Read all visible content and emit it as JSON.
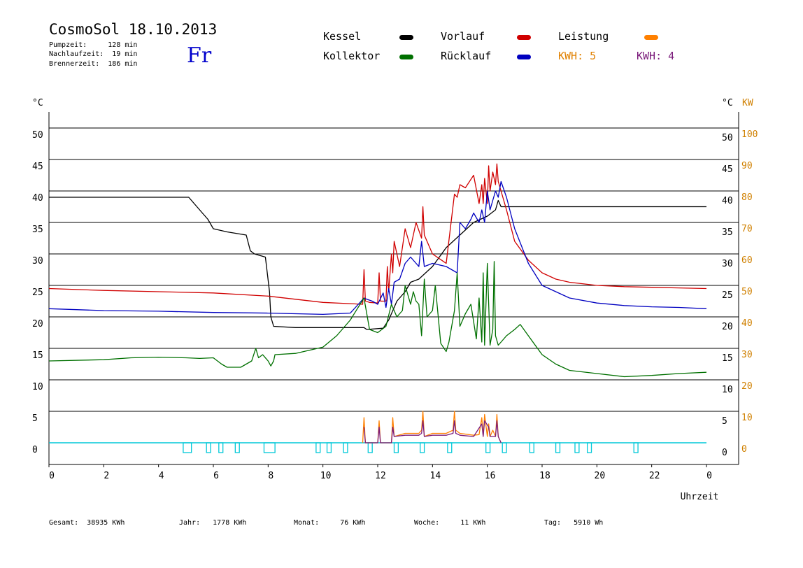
{
  "header": {
    "title": "CosmoSol 18.10.2013",
    "pumpzeit": "Pumpzeit:     128 min",
    "nachlaufzeit": "Nachlaufzeit:  19 min",
    "brennerzeit": "Brennerzeit:  186 min",
    "day": "Fr"
  },
  "legend": {
    "kessel": "Kessel",
    "kollektor": "Kollektor",
    "vorlauf": "Vorlauf",
    "ruecklauf": "Rücklauf",
    "leistung": "Leistung",
    "kwh_orange": "KWH: 5",
    "kwh_purple": "KWH: 4"
  },
  "footer": {
    "gesamt": "Gesamt:  38935 KWh",
    "jahr": "Jahr:   1778 KWh",
    "monat": "Monat:     76 KWh",
    "woche": "Woche:     11 KWh",
    "tag": "Tag:   5910 Wh"
  },
  "colors": {
    "kessel": "#000000",
    "kollektor": "#007000",
    "vorlauf": "#d00000",
    "ruecklauf": "#0000c0",
    "leistung": "#ff8000",
    "purple": "#7a1a7a",
    "pump": "#00c8d8",
    "kw_axis": "#d08000"
  },
  "chart_data": {
    "type": "line",
    "xlabel": "Uhrzeit",
    "x_ticks": [
      "0",
      "2",
      "4",
      "6",
      "8",
      "10",
      "12",
      "14",
      "16",
      "18",
      "20",
      "22",
      "0"
    ],
    "xlim": [
      0,
      24
    ],
    "ylabel_left": "°C",
    "ylabel_right": "°C",
    "ylabel_right2": "KW",
    "ylim": [
      0,
      50
    ],
    "y_ticks": [
      0,
      5,
      10,
      15,
      20,
      25,
      30,
      35,
      40,
      45,
      50
    ],
    "kw_ticks": [
      0,
      10,
      20,
      30,
      40,
      50,
      60,
      70,
      80,
      90,
      100
    ],
    "grid": true,
    "series": [
      {
        "name": "Kessel",
        "key": "kessel",
        "x": [
          0,
          5.1,
          5.3,
          5.6,
          5.8,
          6.0,
          6.5,
          7.2,
          7.35,
          7.5,
          7.9,
          8.05,
          8.1,
          8.2,
          9.0,
          10.0,
          11.5,
          11.6,
          12.2,
          12.4,
          12.7,
          13.0,
          13.2,
          13.5,
          14.0,
          14.5,
          15.0,
          15.5,
          16.0,
          16.3,
          16.4,
          16.5,
          24
        ],
        "y": [
          39,
          39,
          38,
          36.5,
          35.5,
          34,
          33.5,
          33,
          30.5,
          30,
          29.5,
          24,
          20,
          18.5,
          18.3,
          18.3,
          18.3,
          18,
          18.2,
          19.5,
          22.5,
          24,
          25.5,
          26,
          28,
          31,
          33,
          35,
          36,
          37,
          38.5,
          37.5,
          37.5
        ]
      },
      {
        "name": "Vorlauf",
        "key": "vorlauf",
        "x": [
          0,
          2,
          4,
          6,
          8,
          9,
          10,
          11,
          11.45,
          11.5,
          11.55,
          11.7,
          12.0,
          12.05,
          12.1,
          12.3,
          12.35,
          12.4,
          12.5,
          12.55,
          12.6,
          12.8,
          13.0,
          13.2,
          13.4,
          13.6,
          13.65,
          13.7,
          14.0,
          14.5,
          14.8,
          14.9,
          15.0,
          15.2,
          15.5,
          15.7,
          15.8,
          15.85,
          15.9,
          16.0,
          16.05,
          16.1,
          16.2,
          16.3,
          16.35,
          16.4,
          16.5,
          16.7,
          17.0,
          17.5,
          18.0,
          18.5,
          19.0,
          20.0,
          21.0,
          22.0,
          23.0,
          24
        ],
        "y": [
          24.5,
          24.2,
          24,
          23.8,
          23.3,
          22.8,
          22.3,
          22.1,
          22,
          27.5,
          22.5,
          22.3,
          22.2,
          27,
          22.5,
          22.5,
          28,
          24,
          30,
          27,
          32,
          28,
          34,
          31,
          35,
          32.5,
          37.5,
          33,
          30,
          28.5,
          39.5,
          39,
          41,
          40.5,
          42.5,
          38,
          41,
          38,
          42,
          38,
          44,
          40,
          43,
          41,
          44.3,
          41.5,
          40,
          37,
          32,
          29,
          27,
          26,
          25.5,
          25,
          24.8,
          24.7,
          24.6,
          24.5
        ]
      },
      {
        "name": "Rücklauf",
        "key": "ruecklauf",
        "x": [
          0,
          2,
          4,
          6,
          8,
          9,
          10,
          11,
          11.5,
          11.6,
          11.8,
          12.0,
          12.2,
          12.3,
          12.4,
          12.5,
          12.6,
          12.8,
          13.0,
          13.2,
          13.5,
          13.6,
          13.7,
          14.0,
          14.5,
          14.9,
          15.0,
          15.2,
          15.4,
          15.5,
          15.7,
          15.8,
          15.9,
          16.0,
          16.1,
          16.3,
          16.4,
          16.5,
          16.7,
          17.0,
          17.5,
          18.0,
          19.0,
          20.0,
          21.0,
          22.0,
          23.0,
          24
        ],
        "y": [
          21.3,
          21.0,
          20.9,
          20.7,
          20.6,
          20.5,
          20.4,
          20.6,
          23,
          22.8,
          22.5,
          22,
          23.8,
          21.5,
          24.5,
          22,
          25.5,
          26,
          28.5,
          29.5,
          28,
          32,
          28,
          28.5,
          28,
          27,
          35,
          34,
          35.5,
          36.5,
          35,
          37,
          35,
          40,
          37,
          40,
          39,
          41.5,
          39,
          34,
          28.5,
          25,
          23,
          22.2,
          21.8,
          21.6,
          21.5,
          21.3
        ]
      },
      {
        "name": "Kollektor",
        "key": "kollektor",
        "x": [
          0,
          2,
          3,
          4,
          5,
          5.5,
          6,
          6.3,
          6.5,
          7.0,
          7.4,
          7.55,
          7.65,
          7.8,
          8.0,
          8.1,
          8.2,
          8.25,
          9,
          10,
          10.5,
          11,
          11.5,
          11.7,
          12.0,
          12.3,
          12.5,
          12.7,
          12.9,
          13.0,
          13.2,
          13.3,
          13.4,
          13.5,
          13.6,
          13.7,
          13.8,
          14.0,
          14.1,
          14.3,
          14.5,
          14.6,
          14.8,
          14.9,
          15.0,
          15.2,
          15.4,
          15.6,
          15.7,
          15.8,
          15.85,
          15.9,
          16.0,
          16.1,
          16.2,
          16.25,
          16.3,
          16.4,
          16.5,
          16.7,
          17.0,
          17.2,
          17.5,
          18.0,
          18.5,
          19.0,
          20.0,
          21.0,
          22.0,
          23.0,
          24
        ],
        "y": [
          13,
          13.2,
          13.5,
          13.6,
          13.5,
          13.4,
          13.5,
          12.5,
          12,
          12,
          13,
          15,
          13.5,
          14,
          13,
          12.2,
          13,
          14,
          14.2,
          15.2,
          17,
          19.5,
          23,
          18,
          17.5,
          18.5,
          22,
          20,
          21,
          25,
          22,
          24,
          22.5,
          22,
          17,
          26,
          20,
          21,
          25,
          15.8,
          14.5,
          16,
          21,
          27,
          18.5,
          20.5,
          22,
          16.5,
          23,
          16,
          27,
          15.5,
          28.5,
          15.5,
          18,
          28.8,
          17,
          15.5,
          16,
          17,
          18,
          18.8,
          17,
          14,
          12.5,
          11.5,
          11,
          10.5,
          10.7,
          11,
          11.2
        ]
      },
      {
        "name": "Leistung",
        "key": "leistung",
        "x": [
          11.45,
          11.5,
          11.55,
          12.0,
          12.05,
          12.1,
          12.5,
          12.55,
          12.6,
          13.0,
          13.5,
          13.6,
          13.65,
          13.7,
          14.0,
          14.5,
          14.75,
          14.8,
          14.85,
          15.0,
          15.5,
          15.7,
          15.8,
          15.85,
          15.9,
          16.0,
          16.05,
          16.1,
          16.2,
          16.3,
          16.35,
          16.4,
          16.5
        ],
        "y": [
          0,
          4,
          0,
          0,
          3.5,
          0,
          0,
          4,
          1,
          1.5,
          1.5,
          2,
          5,
          1,
          1.5,
          1.5,
          2,
          5,
          2,
          1.5,
          1.2,
          1.3,
          4,
          1,
          4.5,
          1,
          3,
          1,
          2,
          1,
          4.5,
          1,
          0
        ]
      },
      {
        "name": "Purple",
        "key": "purple",
        "x": [
          11.5,
          11.55,
          12.0,
          12.05,
          12.1,
          12.5,
          12.55,
          12.6,
          13.0,
          13.5,
          13.6,
          13.65,
          13.7,
          14.0,
          14.5,
          14.75,
          14.8,
          14.85,
          15.0,
          15.5,
          15.8,
          15.85,
          15.9,
          16.05,
          16.1,
          16.3,
          16.35,
          16.4,
          16.5
        ],
        "y": [
          2.5,
          0,
          0,
          2.5,
          0,
          0,
          2.5,
          1,
          1.2,
          1.2,
          1.5,
          3.5,
          1,
          1.2,
          1.2,
          1.5,
          3.5,
          1.5,
          1.2,
          1,
          3,
          1,
          3.5,
          2.5,
          1,
          1,
          3.5,
          1,
          0
        ]
      }
    ],
    "pump_cycles": [
      [
        4.9,
        5.2
      ],
      [
        5.75,
        5.9
      ],
      [
        6.2,
        6.35
      ],
      [
        6.8,
        6.95
      ],
      [
        7.85,
        8.25
      ],
      [
        9.75,
        9.9
      ],
      [
        10.15,
        10.3
      ],
      [
        10.75,
        10.9
      ],
      [
        11.65,
        11.8
      ],
      [
        12.6,
        12.75
      ],
      [
        13.55,
        13.7
      ],
      [
        14.55,
        14.7
      ],
      [
        15.95,
        16.1
      ],
      [
        16.55,
        16.7
      ],
      [
        17.55,
        17.7
      ],
      [
        18.5,
        18.65
      ],
      [
        19.2,
        19.35
      ],
      [
        19.65,
        19.8
      ],
      [
        21.35,
        21.5
      ]
    ]
  }
}
